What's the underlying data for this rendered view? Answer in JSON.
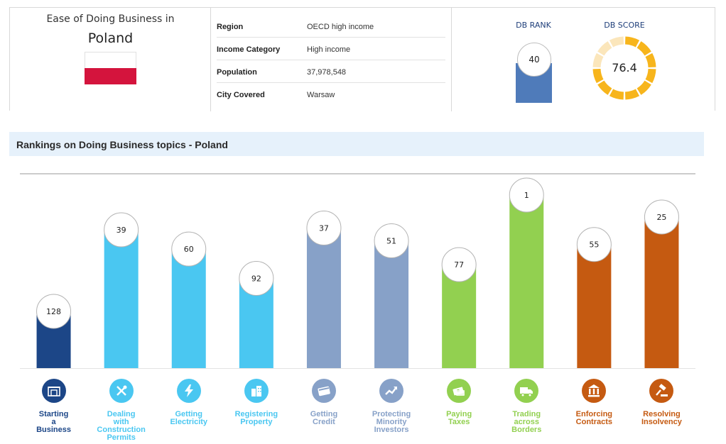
{
  "country_panel": {
    "caption": "Ease of Doing Business in",
    "country": "Poland"
  },
  "info": [
    {
      "label": "Region",
      "value": "OECD high income"
    },
    {
      "label": "Income Category",
      "value": "High income"
    },
    {
      "label": "Population",
      "value": "37,978,548"
    },
    {
      "label": "City Covered",
      "value": "Warsaw"
    }
  ],
  "db": {
    "rank_label": "DB RANK",
    "rank": "40",
    "score_label": "DB SCORE",
    "score": "76.4",
    "score_fraction": 0.764,
    "rank_color": "#4f7bba",
    "score_color": "#f7b51c",
    "score_track_color": "#fbe6bb"
  },
  "section": {
    "title": "Rankings on Doing Business topics - Poland"
  },
  "chart_data": {
    "type": "bar",
    "categories": [
      "Starting a Business",
      "Dealing with Construction Permits",
      "Getting Electricity",
      "Registering Property",
      "Getting Credit",
      "Protecting Minority Investors",
      "Paying Taxes",
      "Trading across Borders",
      "Enforcing Contracts",
      "Resolving Insolvency"
    ],
    "values": [
      128,
      39,
      60,
      92,
      37,
      51,
      77,
      1,
      55,
      25
    ],
    "value_labels": [
      "128",
      "39",
      "60",
      "92",
      "37",
      "51",
      "77",
      "1",
      "55",
      "25"
    ],
    "label_lines": [
      [
        "Starting",
        "a",
        "Business"
      ],
      [
        "Dealing",
        "with",
        "Construction",
        "Permits"
      ],
      [
        "Getting",
        "Electricity"
      ],
      [
        "Registering",
        "Property"
      ],
      [
        "Getting",
        "Credit"
      ],
      [
        "Protecting",
        "Minority",
        "Investors"
      ],
      [
        "Paying",
        "Taxes"
      ],
      [
        "Trading",
        "across",
        "Borders"
      ],
      [
        "Enforcing",
        "Contracts"
      ],
      [
        "Resolving",
        "Insolvency"
      ]
    ],
    "colors": [
      "#1c4687",
      "#4ac7f1",
      "#4ac7f1",
      "#4ac7f1",
      "#87a1c8",
      "#87a1c8",
      "#92d050",
      "#92d050",
      "#c55a11",
      "#c55a11"
    ],
    "icons": [
      "building-icon",
      "tools-icon",
      "lightning-icon",
      "city-icon",
      "credit-card-icon",
      "trend-up-icon",
      "money-icon",
      "truck-icon",
      "courthouse-icon",
      "gavel-icon"
    ],
    "ylim": [
      190,
      1
    ],
    "grid": false,
    "legend": "none"
  }
}
